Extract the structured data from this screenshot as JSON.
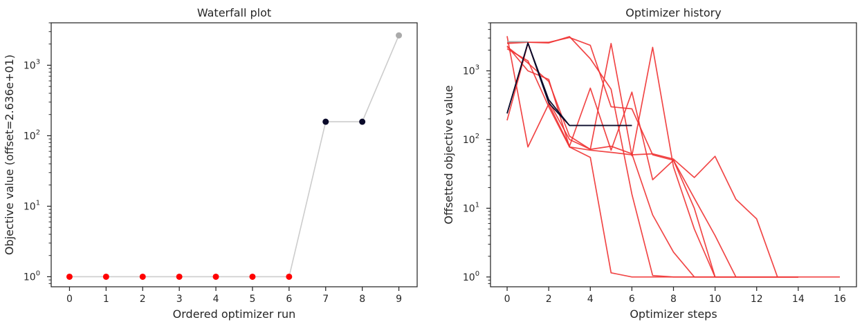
{
  "chart_data": [
    {
      "type": "scatter",
      "title": "Waterfall plot",
      "xlabel": "Ordered optimizer run",
      "ylabel": "Objective value (offset=2.636e+01)",
      "yscale": "log",
      "xlim": [
        -0.5,
        9.5
      ],
      "ylim": [
        0.72,
        4000
      ],
      "xticks": [
        0,
        1,
        2,
        3,
        4,
        5,
        6,
        7,
        8,
        9
      ],
      "yticks": [
        {
          "value": 1,
          "base": "10",
          "exp": "0"
        },
        {
          "value": 10,
          "base": "10",
          "exp": "1"
        },
        {
          "value": 100,
          "base": "10",
          "exp": "2"
        },
        {
          "value": 1000,
          "base": "10",
          "exp": "3"
        }
      ],
      "line_color": "#cccccc",
      "points": [
        {
          "x": 0,
          "y": 1,
          "color": "#ff0000"
        },
        {
          "x": 1,
          "y": 1,
          "color": "#ff0000"
        },
        {
          "x": 2,
          "y": 1,
          "color": "#ff0000"
        },
        {
          "x": 3,
          "y": 1,
          "color": "#ff0000"
        },
        {
          "x": 4,
          "y": 1,
          "color": "#ff0000"
        },
        {
          "x": 5,
          "y": 1,
          "color": "#ff0000"
        },
        {
          "x": 6,
          "y": 1,
          "color": "#ff0000"
        },
        {
          "x": 7,
          "y": 158,
          "color": "#0a0a2a"
        },
        {
          "x": 8,
          "y": 158,
          "color": "#0a0a2a"
        },
        {
          "x": 9,
          "y": 2650,
          "color": "#aaaaaa"
        }
      ]
    },
    {
      "type": "line",
      "title": "Optimizer history",
      "xlabel": "Optimizer steps",
      "ylabel": "Offsetted objective value",
      "yscale": "log",
      "xlim": [
        -0.8,
        16.8
      ],
      "ylim": [
        0.72,
        5000
      ],
      "xticks": [
        0,
        2,
        4,
        6,
        8,
        10,
        12,
        14,
        16
      ],
      "yticks": [
        {
          "value": 1,
          "base": "10",
          "exp": "0"
        },
        {
          "value": 10,
          "base": "10",
          "exp": "1"
        },
        {
          "value": 100,
          "base": "10",
          "exp": "2"
        },
        {
          "value": 1000,
          "base": "10",
          "exp": "3"
        }
      ],
      "series": [
        {
          "color": "#f03232",
          "x": [
            0,
            1,
            2,
            3,
            4,
            5,
            6,
            7,
            8,
            9,
            10,
            11,
            12,
            13,
            14,
            15,
            16
          ],
          "y": [
            2300,
            1000,
            750,
            78,
            70,
            65,
            60,
            62,
            52,
            28,
            57,
            13.5,
            7,
            1,
            1,
            1,
            1
          ]
        },
        {
          "color": "#f03232",
          "x": [
            0,
            1,
            2,
            3,
            4,
            5,
            6,
            7,
            8,
            9,
            10,
            11,
            12,
            13,
            14
          ],
          "y": [
            3200,
            78,
            330,
            80,
            560,
            70,
            490,
            26,
            50,
            10,
            1,
            1,
            1,
            1,
            1
          ]
        },
        {
          "color": "#f03232",
          "x": [
            0,
            1,
            2,
            3,
            4,
            5,
            6,
            7,
            8,
            9,
            10,
            11,
            12,
            13,
            14
          ],
          "y": [
            190,
            2500,
            360,
            100,
            72,
            2500,
            58,
            2200,
            40,
            5,
            1,
            1,
            1,
            1,
            1
          ]
        },
        {
          "color": "#f03232",
          "x": [
            0,
            1,
            2,
            3,
            4,
            5,
            6,
            7,
            8,
            9,
            10,
            11,
            12,
            13,
            14
          ],
          "y": [
            2600,
            2600,
            2550,
            3150,
            1500,
            540,
            16,
            1.05,
            1,
            1,
            1,
            1,
            1,
            1,
            1
          ]
        },
        {
          "color": "#f03232",
          "x": [
            0,
            1,
            2,
            3,
            4,
            5,
            6,
            7,
            8,
            9,
            10,
            11,
            12,
            13,
            14
          ],
          "y": [
            2500,
            2600,
            2600,
            3050,
            2350,
            300,
            280,
            60,
            50,
            14,
            4,
            1,
            1,
            1,
            1
          ]
        },
        {
          "color": "#f03232",
          "x": [
            0,
            1,
            2,
            3,
            4,
            5,
            6,
            7,
            8,
            9,
            10,
            11,
            12,
            13,
            14
          ],
          "y": [
            2100,
            1400,
            300,
            78,
            55,
            1.15,
            1,
            1,
            1,
            1,
            1,
            1,
            1,
            1,
            1
          ]
        },
        {
          "color": "#f03232",
          "x": [
            0,
            1,
            2,
            3,
            4,
            5,
            6,
            7,
            8,
            9,
            10,
            11,
            12,
            13,
            14
          ],
          "y": [
            2250,
            1300,
            700,
            112,
            72,
            80,
            62,
            8,
            2.3,
            1,
            1,
            1,
            1,
            1,
            1
          ]
        },
        {
          "color": "#aaaaaa",
          "x": [
            0,
            1
          ],
          "y": [
            2650,
            2650
          ]
        },
        {
          "color": "#0a0a2a",
          "x": [
            0,
            1,
            2,
            3,
            4,
            5,
            6
          ],
          "y": [
            240,
            2550,
            380,
            160,
            160,
            160,
            160
          ]
        },
        {
          "color": "#0a0a2a",
          "x": [
            0,
            1,
            2,
            3,
            4,
            5,
            6
          ],
          "y": [
            240,
            2550,
            340,
            160,
            160,
            160,
            160
          ]
        }
      ]
    }
  ]
}
